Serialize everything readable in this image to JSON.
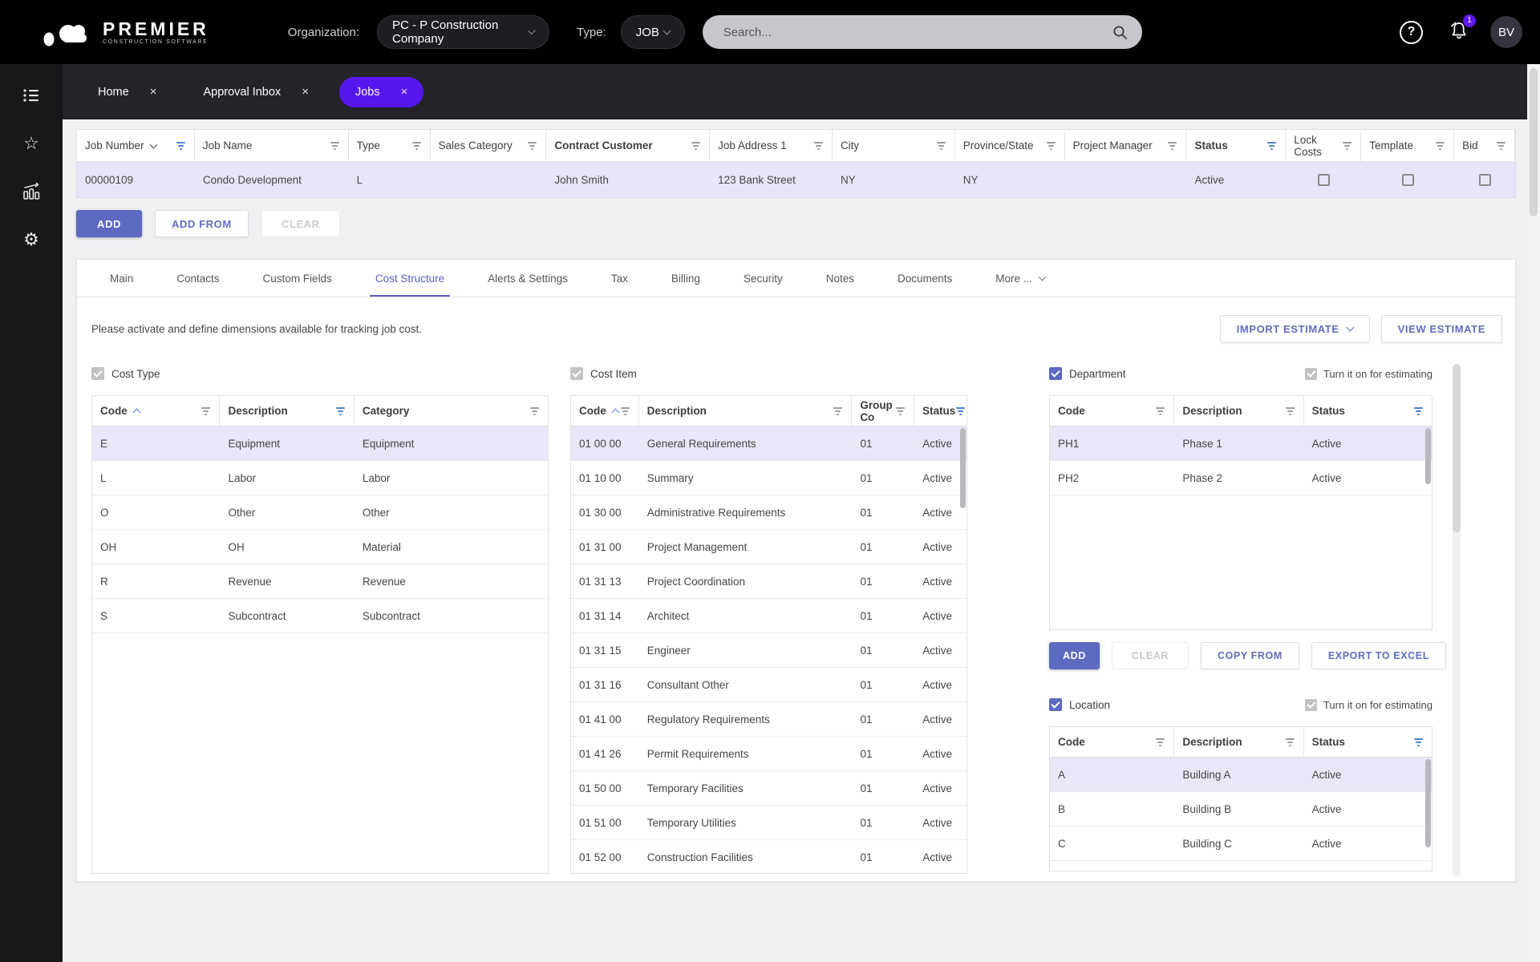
{
  "topbar": {
    "brand_name": "PREMIER",
    "brand_subtitle": "CONSTRUCTION SOFTWARE",
    "organization_label": "Organization:",
    "organization_value": "PC - P Construction Company",
    "type_label": "Type:",
    "type_value": "JOB",
    "search_placeholder": "Search...",
    "notification_badge": "1",
    "avatar_initials": "BV"
  },
  "sidebar": {
    "icons": [
      "menu-list-icon",
      "favorites-star-icon",
      "reports-chart-icon",
      "settings-gear-icon"
    ]
  },
  "workspace_tabs": [
    {
      "label": "Home",
      "close": "×",
      "active": false
    },
    {
      "label": "Approval Inbox",
      "close": "×",
      "active": false
    },
    {
      "label": "Jobs",
      "close": "×",
      "active": true
    }
  ],
  "jobs_grid": {
    "columns": [
      {
        "label": "Job Number",
        "sort": "desc",
        "filter_active": true,
        "bold": false
      },
      {
        "label": "Job Name",
        "filter_active": false,
        "bold": false
      },
      {
        "label": "Type",
        "filter_active": false,
        "bold": false
      },
      {
        "label": "Sales Category",
        "filter_active": false,
        "bold": false
      },
      {
        "label": "Contract Customer",
        "filter_active": false,
        "bold": true
      },
      {
        "label": "Job Address 1",
        "filter_active": false,
        "bold": false
      },
      {
        "label": "City",
        "filter_active": false,
        "bold": false
      },
      {
        "label": "Province/State",
        "filter_active": false,
        "bold": false
      },
      {
        "label": "Project Manager",
        "filter_active": false,
        "bold": false
      },
      {
        "label": "Status",
        "filter_active": true,
        "bold": true
      },
      {
        "label": "Lock Costs",
        "filter_active": false,
        "bold": false,
        "checkbox_col": true
      },
      {
        "label": "Template",
        "filter_active": false,
        "bold": false,
        "checkbox_col": true
      },
      {
        "label": "Bid",
        "filter_active": false,
        "bold": false,
        "checkbox_col": true
      }
    ],
    "rows": [
      {
        "cells": [
          "00000109",
          "Condo Development",
          "L",
          "",
          "John Smith",
          "123 Bank Street",
          "NY",
          "NY",
          "",
          "Active"
        ],
        "checkboxes": {
          "lock_costs": false,
          "template": false,
          "bid": false
        },
        "selected": true
      }
    ]
  },
  "grid_actions": {
    "add": "ADD",
    "add_from": "ADD FROM",
    "clear": "CLEAR"
  },
  "detail_tabs": {
    "items": [
      "Main",
      "Contacts",
      "Custom Fields",
      "Cost Structure",
      "Alerts & Settings",
      "Tax",
      "Billing",
      "Security",
      "Notes",
      "Documents",
      "More ..."
    ],
    "active": "Cost Structure"
  },
  "cost_structure": {
    "instruction": "Please activate and define dimensions available for tracking job cost.",
    "import_estimate_button": "IMPORT ESTIMATE",
    "view_estimate_button": "VIEW ESTIMATE",
    "cost_type": {
      "title": "Cost Type",
      "checkbox": {
        "checked": true,
        "disabled": true
      },
      "columns": [
        {
          "label": "Code",
          "sort": "asc",
          "filter_active": false
        },
        {
          "label": "Description",
          "filter_active": true
        },
        {
          "label": "Category",
          "filter_active": false
        }
      ],
      "rows": [
        [
          "E",
          "Equipment",
          "Equipment"
        ],
        [
          "L",
          "Labor",
          "Labor"
        ],
        [
          "O",
          "Other",
          "Other"
        ],
        [
          "OH",
          "OH",
          "Material"
        ],
        [
          "R",
          "Revenue",
          "Revenue"
        ],
        [
          "S",
          "Subcontract",
          "Subcontract"
        ]
      ],
      "selected_row": 0
    },
    "cost_item": {
      "title": "Cost Item",
      "checkbox": {
        "checked": true,
        "disabled": true
      },
      "columns": [
        {
          "label": "Code",
          "sort": "asc",
          "filter_active": false
        },
        {
          "label": "Description",
          "filter_active": false
        },
        {
          "label": "Group Co",
          "filter_active": false
        },
        {
          "label": "Status",
          "filter_active": true
        }
      ],
      "rows": [
        [
          "01 00 00",
          "General Requirements",
          "01",
          "Active"
        ],
        [
          "01 10 00",
          "Summary",
          "01",
          "Active"
        ],
        [
          "01 30 00",
          "Administrative Requirements",
          "01",
          "Active"
        ],
        [
          "01 31 00",
          "Project Management",
          "01",
          "Active"
        ],
        [
          "01 31 13",
          "Project Coordination",
          "01",
          "Active"
        ],
        [
          "01 31 14",
          "Architect",
          "01",
          "Active"
        ],
        [
          "01 31 15",
          "Engineer",
          "01",
          "Active"
        ],
        [
          "01 31 16",
          "Consultant Other",
          "01",
          "Active"
        ],
        [
          "01 41 00",
          "Regulatory Requirements",
          "01",
          "Active"
        ],
        [
          "01 41 26",
          "Permit Requirements",
          "01",
          "Active"
        ],
        [
          "01 50 00",
          "Temporary Facilities",
          "01",
          "Active"
        ],
        [
          "01 51 00",
          "Temporary Utilities",
          "01",
          "Active"
        ],
        [
          "01 52 00",
          "Construction Facilities",
          "01",
          "Active"
        ]
      ],
      "selected_row": 0
    },
    "department": {
      "title": "Department",
      "checkbox": {
        "checked": true,
        "disabled": false
      },
      "estimating_label": "Turn it on for estimating",
      "estimating_checkbox": {
        "checked": true,
        "disabled": true
      },
      "columns": [
        {
          "label": "Code",
          "filter_active": false
        },
        {
          "label": "Description",
          "filter_active": false
        },
        {
          "label": "Status",
          "filter_active": true
        }
      ],
      "rows": [
        [
          "PH1",
          "Phase 1",
          "Active"
        ],
        [
          "PH2",
          "Phase 2",
          "Active"
        ]
      ],
      "selected_row": 0,
      "buttons": [
        "ADD",
        "CLEAR",
        "COPY FROM",
        "EXPORT TO EXCEL"
      ]
    },
    "location": {
      "title": "Location",
      "checkbox": {
        "checked": true,
        "disabled": false
      },
      "estimating_label": "Turn it on for estimating",
      "estimating_checkbox": {
        "checked": true,
        "disabled": true
      },
      "columns": [
        {
          "label": "Code",
          "filter_active": false
        },
        {
          "label": "Description",
          "filter_active": false
        },
        {
          "label": "Status",
          "filter_active": true
        }
      ],
      "rows": [
        [
          "A",
          "Building A",
          "Active"
        ],
        [
          "B",
          "Building B",
          "Active"
        ],
        [
          "C",
          "Building C",
          "Active"
        ]
      ],
      "selected_row": 0
    }
  },
  "colors": {
    "accent_purple": "#5617ef",
    "indigo_button": "#5c6bc0",
    "filter_active_blue": "#4e82d6",
    "selected_row_bg": "#e9e6f8"
  }
}
